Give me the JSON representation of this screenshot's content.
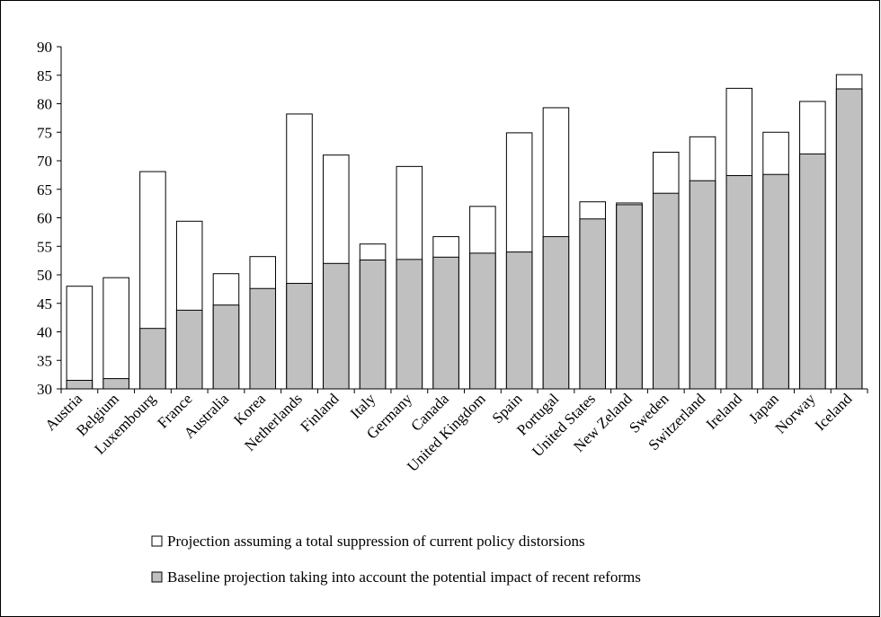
{
  "chart_data": {
    "type": "overlap-bar",
    "categories": [
      "Austria",
      "Belgium",
      "Luxembourg",
      "France",
      "Australia",
      "Korea",
      "Netherlands",
      "Finland",
      "Italy",
      "Germany",
      "Canada",
      "United Kingdom",
      "Spain",
      "Portugal",
      "United States",
      "New Zeland",
      "Sweden",
      "Switzerland",
      "Ireland",
      "Japan",
      "Norway",
      "Iceland"
    ],
    "series": [
      {
        "name": "Projection assuming a total suppression of current policy distorsions",
        "color": "#ffffff",
        "values": [
          48,
          49.5,
          68.1,
          59.4,
          50.2,
          53.2,
          78.2,
          71,
          55.4,
          69,
          56.7,
          62,
          74.9,
          79.3,
          62.8,
          62.6,
          71.5,
          74.2,
          82.7,
          75,
          80.4,
          85.1
        ]
      },
      {
        "name": "Baseline projection taking into account the potential impact of recent reforms",
        "color": "#c0c0c0",
        "values": [
          31.5,
          31.8,
          40.6,
          43.8,
          44.7,
          47.6,
          48.5,
          52,
          52.6,
          52.7,
          53.1,
          53.8,
          54,
          56.7,
          59.8,
          62.3,
          64.3,
          66.5,
          67.4,
          67.6,
          71.2,
          82.6
        ]
      }
    ],
    "ylim": [
      30,
      90
    ],
    "yticks": [
      30,
      35,
      40,
      45,
      50,
      55,
      60,
      65,
      70,
      75,
      80,
      85,
      90
    ],
    "grid": false
  }
}
